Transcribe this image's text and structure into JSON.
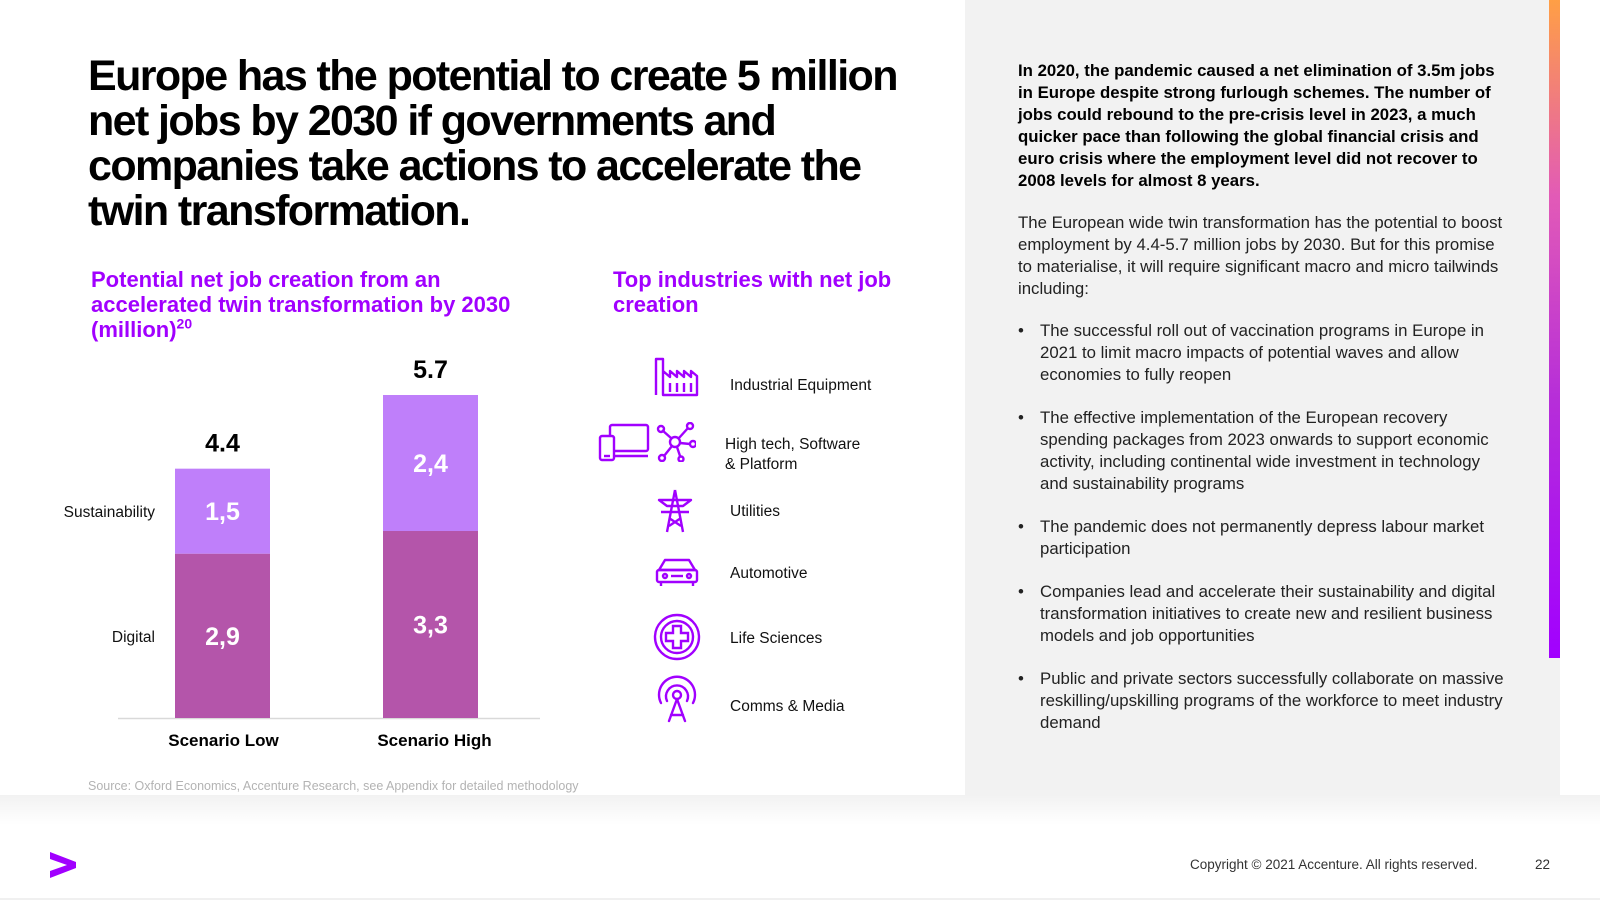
{
  "headline": "Europe has the potential to create 5 million net jobs by 2030 if governments and companies take actions to accelerate the twin transformation.",
  "chart_title": "Potential net job creation from an accelerated twin transformation by 2030 (million)",
  "chart_title_footnote": "20",
  "chart_data": {
    "type": "bar",
    "stacked": true,
    "title": "Potential net job creation from an accelerated twin transformation by 2030 (million)",
    "categories": [
      "Scenario Low",
      "Scenario High"
    ],
    "series": [
      {
        "name": "Digital",
        "values": [
          2.9,
          3.3
        ],
        "labels": [
          "2,9",
          "3,3"
        ],
        "color": "#b455aa"
      },
      {
        "name": "Sustainability",
        "values": [
          1.5,
          2.4
        ],
        "labels": [
          "1,5",
          "2,4"
        ],
        "color": "#bf7ffa"
      }
    ],
    "totals": [
      4.4,
      5.7
    ],
    "total_labels": [
      "4.4",
      "5.7"
    ],
    "legend_placement": "left",
    "grid": false,
    "ylim": [
      0,
      5.7
    ]
  },
  "industries_title": "Top industries with net job creation",
  "industries": [
    {
      "label": "Industrial Equipment",
      "icon": "factory-icon"
    },
    {
      "label": "High tech, Software\n& Platform",
      "icon": "devices-network-icon"
    },
    {
      "label": "Utilities",
      "icon": "power-tower-icon"
    },
    {
      "label": "Automotive",
      "icon": "car-icon"
    },
    {
      "label": "Life Sciences",
      "icon": "medical-cross-icon"
    },
    {
      "label": "Comms & Media",
      "icon": "broadcast-tower-icon"
    }
  ],
  "source": "Source: Oxford Economics, Accenture Research, see Appendix for detailed methodology",
  "panel": {
    "intro_bold": "In 2020, the pandemic caused a net elimination of 3.5m jobs in Europe despite strong furlough schemes. The number of jobs could rebound to the pre-crisis level in 2023, a much quicker pace than following the global financial crisis and euro crisis where the employment level did not recover to 2008 levels for almost 8 years.",
    "intro_body": "The European wide twin transformation has the potential to boost employment by 4.4-5.7 million jobs by 2030. But for this promise to materialise, it will require significant macro and micro tailwinds including:",
    "bullets": [
      "The successful roll out of vaccination programs in Europe in 2021 to limit macro impacts of potential waves and allow economies to fully reopen",
      "The effective implementation of the European recovery spending packages from 2023 onwards to support economic activity, including continental wide investment in technology and sustainability programs",
      "The pandemic does not permanently depress labour market participation",
      "Companies lead and accelerate their sustainability and digital transformation initiatives to create new and resilient business models and job opportunities",
      "Public and private sectors successfully collaborate on massive reskilling/upskilling programs of the workforce to meet industry demand"
    ]
  },
  "footer": {
    "copyright": "Copyright © 2021 Accenture. All rights reserved.",
    "page_number": "22"
  },
  "colors": {
    "accent": "#a100ff",
    "digital": "#b455aa",
    "sustainability": "#bf7ffa",
    "panel_bg": "#f2f2f2"
  }
}
